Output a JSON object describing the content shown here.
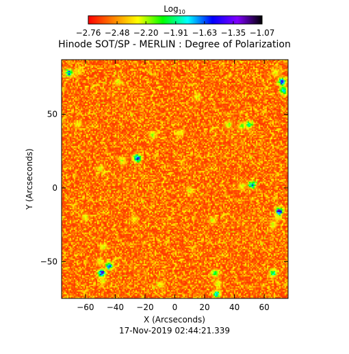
{
  "chart_data": {
    "type": "heatmap",
    "title": "Hinode SOT/SP - MERLIN : Degree of Polarization",
    "colorbar": {
      "label_base": "Log",
      "label_sub": "10",
      "placement": "top",
      "ticks": [
        "-2.76",
        "-2.48",
        "-2.20",
        "-1.91",
        "-1.63",
        "-1.35",
        "-1.07"
      ],
      "range": [
        -2.76,
        -1.07
      ],
      "colormap": [
        "#ff0000",
        "#ff8000",
        "#ffff00",
        "#00ff00",
        "#00ffff",
        "#0000ff",
        "#8000ff",
        "#000000"
      ]
    },
    "xlabel": "X (Arcseconds)",
    "ylabel": "Y (Arcseconds)",
    "xlim": [
      -76,
      76
    ],
    "ylim": [
      -75,
      87
    ],
    "xticks": [
      -60,
      -40,
      -20,
      0,
      20,
      40,
      60
    ],
    "yticks": [
      -50,
      0,
      50
    ],
    "timestamp": "17-Nov-2019 02:44:21.339",
    "background_level": -2.62,
    "features": [
      {
        "x": -71,
        "y": 78,
        "level": -1.55
      },
      {
        "x": -65,
        "y": 79,
        "level": -2.2
      },
      {
        "x": -38,
        "y": 72,
        "level": -2.15
      },
      {
        "x": -65,
        "y": 43,
        "level": -2.2
      },
      {
        "x": -15,
        "y": 36,
        "level": -2.15
      },
      {
        "x": -25,
        "y": 20,
        "level": -1.2
      },
      {
        "x": -35,
        "y": 18,
        "level": -2.15
      },
      {
        "x": -50,
        "y": 13,
        "level": -2.2
      },
      {
        "x": 3,
        "y": 37,
        "level": -2.2
      },
      {
        "x": 15,
        "y": 62,
        "level": -2.2
      },
      {
        "x": 36,
        "y": 43,
        "level": -2.1
      },
      {
        "x": 45,
        "y": 42,
        "level": -2.1
      },
      {
        "x": 50,
        "y": 43,
        "level": -1.85
      },
      {
        "x": 72,
        "y": 72,
        "level": -1.3
      },
      {
        "x": 73,
        "y": 66,
        "level": -1.7
      },
      {
        "x": 68,
        "y": 78,
        "level": -2.2
      },
      {
        "x": 10,
        "y": -2,
        "level": -2.2
      },
      {
        "x": 45,
        "y": 1,
        "level": -2.2
      },
      {
        "x": 52,
        "y": 2,
        "level": -1.5
      },
      {
        "x": 70,
        "y": -16,
        "level": -1.2
      },
      {
        "x": 69,
        "y": -20,
        "level": -2.2
      },
      {
        "x": 66,
        "y": -25,
        "level": -2.2
      },
      {
        "x": -60,
        "y": -20,
        "level": -2.2
      },
      {
        "x": -27,
        "y": -21,
        "level": -2.2
      },
      {
        "x": 25,
        "y": -22,
        "level": -2.2
      },
      {
        "x": -48,
        "y": -40,
        "level": -2.2
      },
      {
        "x": -50,
        "y": -50,
        "level": -2.2
      },
      {
        "x": -44,
        "y": -53,
        "level": -1.5
      },
      {
        "x": -49,
        "y": -58,
        "level": -1.2
      },
      {
        "x": -48,
        "y": -63,
        "level": -2.2
      },
      {
        "x": 27,
        "y": -58,
        "level": -1.9
      },
      {
        "x": 29,
        "y": -65,
        "level": -2.2
      },
      {
        "x": 28,
        "y": -72,
        "level": -1.7
      },
      {
        "x": 66,
        "y": -58,
        "level": -1.8
      },
      {
        "x": -10,
        "y": -66,
        "level": -2.2
      }
    ]
  }
}
